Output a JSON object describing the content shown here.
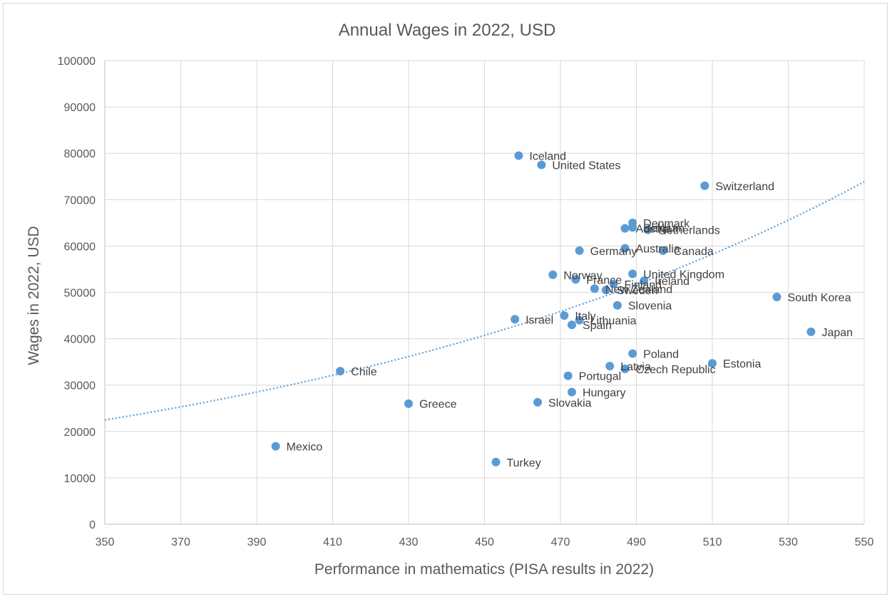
{
  "chart_data": {
    "type": "scatter",
    "title": "Annual Wages in 2022, USD",
    "xlabel": "Performance in mathematics (PISA results in 2022)",
    "ylabel": "Wages in 2022, USD",
    "xlim": [
      350,
      550
    ],
    "ylim": [
      0,
      100000
    ],
    "x_ticks": [
      "350",
      "370",
      "390",
      "410",
      "430",
      "450",
      "470",
      "490",
      "510",
      "530",
      "550"
    ],
    "y_ticks": [
      "0",
      "10000",
      "20000",
      "30000",
      "40000",
      "50000",
      "60000",
      "70000",
      "80000",
      "90000",
      "100000"
    ],
    "grid": true,
    "trendline": {
      "type": "exponential",
      "a": 2800,
      "b": 0.00595
    },
    "points": [
      {
        "label": "Iceland",
        "x": 459,
        "y": 79500
      },
      {
        "label": "United States",
        "x": 465,
        "y": 77500
      },
      {
        "label": "Switzerland",
        "x": 508,
        "y": 73000
      },
      {
        "label": "Denmark",
        "x": 489,
        "y": 65000
      },
      {
        "label": "Belgium",
        "x": 489,
        "y": 64000
      },
      {
        "label": "Austria",
        "x": 487,
        "y": 63800
      },
      {
        "label": "Netherlands",
        "x": 493,
        "y": 63500
      },
      {
        "label": "Germany",
        "x": 475,
        "y": 59000
      },
      {
        "label": "Australia",
        "x": 487,
        "y": 59500
      },
      {
        "label": "Canada",
        "x": 497,
        "y": 59000
      },
      {
        "label": "Norway",
        "x": 468,
        "y": 53800
      },
      {
        "label": "United Kingdom",
        "x": 489,
        "y": 54000
      },
      {
        "label": "France",
        "x": 474,
        "y": 52800
      },
      {
        "label": "Ireland",
        "x": 492,
        "y": 52500
      },
      {
        "label": "Finland",
        "x": 484,
        "y": 51800
      },
      {
        "label": "New Zealand",
        "x": 479,
        "y": 50800
      },
      {
        "label": "Sweden",
        "x": 482,
        "y": 50500
      },
      {
        "label": "South Korea",
        "x": 527,
        "y": 49000
      },
      {
        "label": "Slovenia",
        "x": 485,
        "y": 47200
      },
      {
        "label": "Israel",
        "x": 458,
        "y": 44200
      },
      {
        "label": "Italy",
        "x": 471,
        "y": 45000
      },
      {
        "label": "Lithuania",
        "x": 475,
        "y": 44000
      },
      {
        "label": "Spain",
        "x": 473,
        "y": 43000
      },
      {
        "label": "Japan",
        "x": 536,
        "y": 41500
      },
      {
        "label": "Poland",
        "x": 489,
        "y": 36800
      },
      {
        "label": "Estonia",
        "x": 510,
        "y": 34700
      },
      {
        "label": "Latvia",
        "x": 483,
        "y": 34100
      },
      {
        "label": "Czech Republic",
        "x": 487,
        "y": 33500
      },
      {
        "label": "Chile",
        "x": 412,
        "y": 33000
      },
      {
        "label": "Portugal",
        "x": 472,
        "y": 32000
      },
      {
        "label": "Hungary",
        "x": 473,
        "y": 28500
      },
      {
        "label": "Greece",
        "x": 430,
        "y": 26000
      },
      {
        "label": "Slovakia",
        "x": 464,
        "y": 26300
      },
      {
        "label": "Mexico",
        "x": 395,
        "y": 16800
      },
      {
        "label": "Turkey",
        "x": 453,
        "y": 13400
      }
    ]
  }
}
